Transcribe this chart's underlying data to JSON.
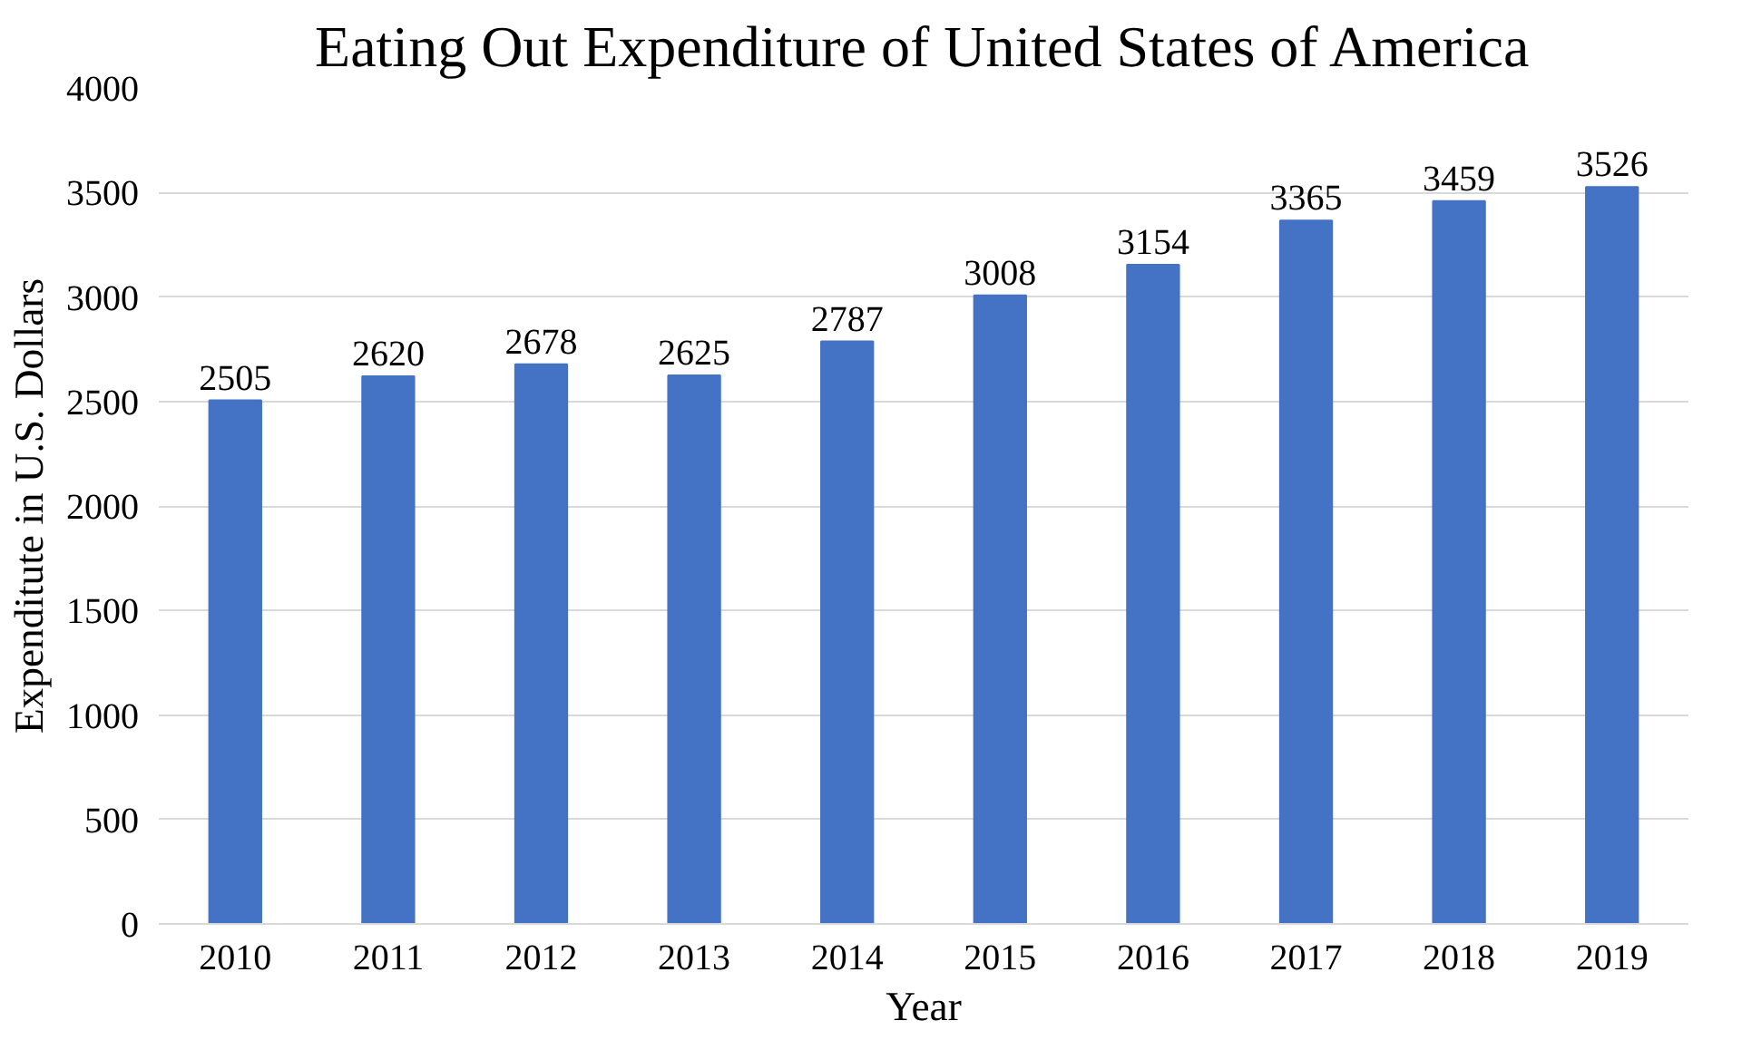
{
  "chart_data": {
    "type": "bar",
    "title": "Eating Out Expenditure of United States of America",
    "xlabel": "Year",
    "ylabel": "Expenditute in U.S. Dollars",
    "categories": [
      "2010",
      "2011",
      "2012",
      "2013",
      "2014",
      "2015",
      "2016",
      "2017",
      "2018",
      "2019"
    ],
    "values": [
      2505,
      2620,
      2678,
      2625,
      2787,
      3008,
      3154,
      3365,
      3459,
      3526
    ],
    "color": "#4472c4",
    "ylim": [
      0,
      4000
    ],
    "yticks": [
      0,
      500,
      1000,
      1500,
      2000,
      2500,
      3000,
      3500,
      4000
    ],
    "grid": "y",
    "data_labels": true
  }
}
